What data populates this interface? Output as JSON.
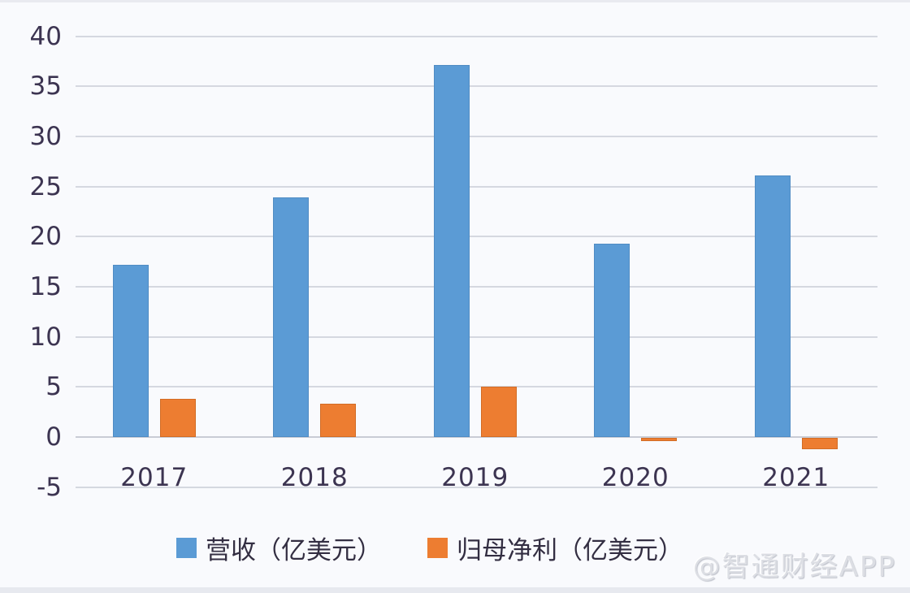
{
  "watermark": "@智通财经APP",
  "colors": {
    "revenue_blue": "#5B9BD5",
    "net_profit_orange": "#ED7D31",
    "axis_text": "#3C3451",
    "gridline": "#D5D8E0",
    "background": "#F9FAFD",
    "watermark_gray": "#DCDEE4"
  },
  "chart_data": {
    "type": "bar",
    "categories": [
      "2017",
      "2018",
      "2019",
      "2020",
      "2021"
    ],
    "series": [
      {
        "name": "营收（亿美元）",
        "color": "#5B9BD5",
        "values": [
          17.2,
          23.9,
          37.1,
          19.3,
          26.1
        ]
      },
      {
        "name": "归母净利（亿美元）",
        "color": "#ED7D31",
        "values": [
          3.8,
          3.3,
          5.0,
          -0.3,
          -1.1
        ]
      }
    ],
    "y_ticks": [
      40,
      35,
      30,
      25,
      20,
      15,
      10,
      5,
      0,
      -5
    ],
    "ylim": [
      -5,
      40
    ],
    "grid": true,
    "legend_position": "bottom"
  }
}
